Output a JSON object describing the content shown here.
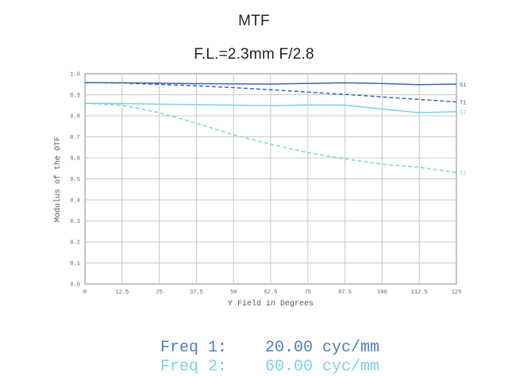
{
  "header": {
    "title": "MTF",
    "subtitle": "F.L.=2.3mm   F/2.8"
  },
  "legend": [
    {
      "label": "Freq 1:",
      "value": "20.00 cyc/mm",
      "color": "#4a7fc1"
    },
    {
      "label": "Freq 2:",
      "value": "60.00 cyc/mm",
      "color": "#7ed0e6"
    }
  ],
  "chart_data": {
    "type": "line",
    "xlabel": "Y Field in Degrees",
    "ylabel": "Modulus of the OTF",
    "xlim": [
      0,
      125
    ],
    "ylim": [
      0,
      1.0
    ],
    "grid": true,
    "x_ticks": [
      "0",
      "12.5",
      "25",
      "37.5",
      "50",
      "62.5",
      "75",
      "87.5",
      "100",
      "112.5",
      "125"
    ],
    "y_ticks": [
      "0.0",
      "0.1",
      "0.2",
      "0.3",
      "0.4",
      "0.5",
      "0.6",
      "0.7",
      "0.8",
      "0.9",
      "1.0"
    ],
    "series": [
      {
        "name": "S1",
        "freq": "Freq 1",
        "dashed": false,
        "color": "#3a66b8",
        "x": [
          0,
          12.5,
          25,
          37.5,
          50,
          62.5,
          75,
          87.5,
          100,
          112.5,
          125
        ],
        "y": [
          0.958,
          0.957,
          0.955,
          0.953,
          0.952,
          0.951,
          0.954,
          0.957,
          0.954,
          0.948,
          0.951
        ]
      },
      {
        "name": "T1",
        "freq": "Freq 1",
        "dashed": true,
        "color": "#3a66b8",
        "x": [
          0,
          12.5,
          25,
          37.5,
          50,
          62.5,
          75,
          87.5,
          100,
          112.5,
          125
        ],
        "y": [
          0.958,
          0.956,
          0.95,
          0.943,
          0.934,
          0.924,
          0.913,
          0.902,
          0.89,
          0.878,
          0.866
        ]
      },
      {
        "name": "S2",
        "freq": "Freq 2",
        "dashed": false,
        "color": "#7ed0e6",
        "x": [
          0,
          12.5,
          25,
          37.5,
          50,
          62.5,
          75,
          87.5,
          100,
          112.5,
          125
        ],
        "y": [
          0.86,
          0.858,
          0.856,
          0.853,
          0.851,
          0.848,
          0.852,
          0.851,
          0.832,
          0.815,
          0.82
        ]
      },
      {
        "name": "T2",
        "freq": "Freq 2",
        "dashed": true,
        "color": "#7ed0e6",
        "x": [
          0,
          12.5,
          25,
          37.5,
          50,
          62.5,
          75,
          87.5,
          100,
          112.5,
          125
        ],
        "y": [
          0.86,
          0.85,
          0.815,
          0.765,
          0.71,
          0.665,
          0.625,
          0.595,
          0.57,
          0.555,
          0.53
        ]
      }
    ]
  }
}
